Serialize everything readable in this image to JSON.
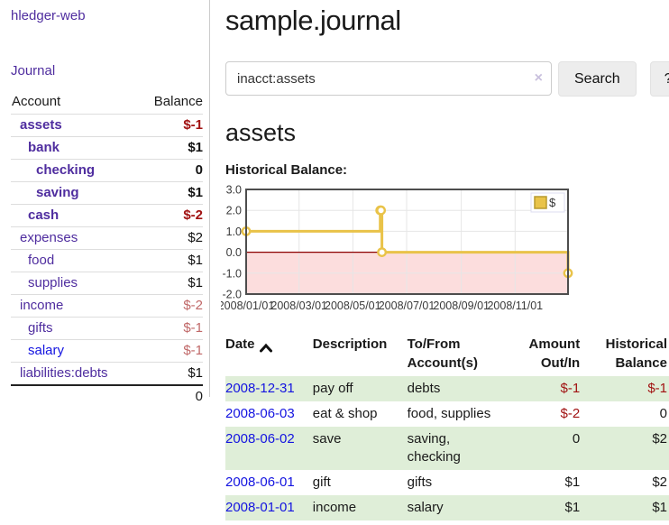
{
  "app": {
    "brand": "hledger-web",
    "nav_journal": "Journal"
  },
  "sidebar": {
    "headers": {
      "account": "Account",
      "balance": "Balance"
    },
    "accounts": [
      {
        "label": "assets",
        "level": 1,
        "bold": true,
        "balance": "$-1",
        "balance_style": "neg",
        "link": "purple"
      },
      {
        "label": "bank",
        "level": 2,
        "bold": true,
        "balance": "$1",
        "balance_style": "pos",
        "link": "purple"
      },
      {
        "label": "checking",
        "level": 3,
        "bold": true,
        "balance": "0",
        "balance_style": "pos",
        "link": "purple"
      },
      {
        "label": "saving",
        "level": 3,
        "bold": true,
        "balance": "$1",
        "balance_style": "pos",
        "link": "purple"
      },
      {
        "label": "cash",
        "level": 2,
        "bold": true,
        "balance": "$-2",
        "balance_style": "neg",
        "link": "purple"
      },
      {
        "label": "expenses",
        "level": 1,
        "bold": false,
        "balance": "$2",
        "balance_style": "pos",
        "link": "purple"
      },
      {
        "label": "food",
        "level": 2,
        "bold": false,
        "balance": "$1",
        "balance_style": "pos",
        "link": "purple"
      },
      {
        "label": "supplies",
        "level": 2,
        "bold": false,
        "balance": "$1",
        "balance_style": "pos",
        "link": "purple"
      },
      {
        "label": "income",
        "level": 1,
        "bold": false,
        "balance": "$-2",
        "balance_style": "neg-dim",
        "link": "purple"
      },
      {
        "label": "gifts",
        "level": 2,
        "bold": false,
        "balance": "$-1",
        "balance_style": "neg-dim",
        "link": "purple"
      },
      {
        "label": "salary",
        "level": 2,
        "bold": false,
        "balance": "$-1",
        "balance_style": "neg-dim",
        "link": "blue"
      },
      {
        "label": "liabilities:debts",
        "level": 1,
        "bold": false,
        "balance": "$1",
        "balance_style": "pos",
        "link": "purple"
      }
    ],
    "total": "0"
  },
  "header": {
    "title": "sample.journal"
  },
  "search": {
    "value": "inacct:assets",
    "clear_icon": "×",
    "button_label": "Search",
    "help_label": "?"
  },
  "account_page": {
    "heading": "assets",
    "chart_label": "Historical Balance:"
  },
  "chart_data": {
    "type": "line",
    "title": "Historical Balance",
    "step": true,
    "series": [
      {
        "name": "$",
        "color": "#e9c349",
        "marker_fill": "#ffffff",
        "points": [
          [
            "2008-01-01",
            1
          ],
          [
            "2008-06-01",
            2
          ],
          [
            "2008-06-02",
            2
          ],
          [
            "2008-06-03",
            0
          ],
          [
            "2008-12-31",
            -1
          ]
        ]
      }
    ],
    "x_range": [
      "2008-01-01",
      "2008-12-31"
    ],
    "x_tick_labels": [
      "2008/01/01",
      "2008/03/01",
      "2008/05/01",
      "2008/07/01",
      "2008/09/01",
      "2008/11/01"
    ],
    "x_tick_dates": [
      "2008-01-01",
      "2008-03-01",
      "2008-05-01",
      "2008-07-01",
      "2008-09-01",
      "2008-11-01"
    ],
    "y_ticks": [
      "3.0",
      "2.0",
      "1.0",
      "0.0",
      "-1.0",
      "-2.0"
    ],
    "ylim": [
      -2,
      3
    ],
    "grid": true,
    "legend_position": "top-right",
    "colors": {
      "negative_region": "#fcdddd",
      "zero_line": "#8b0000",
      "gridline": "#e6e6e6",
      "plot_border": "#4d4d4d",
      "legend_square": "#e9c349",
      "legend_square_border": "#b89a2e"
    }
  },
  "register_table": {
    "headers": {
      "date": "Date",
      "description": "Description",
      "accounts": "To/From Account(s)",
      "amount": "Amount Out/In",
      "balance": "Historical Balance"
    },
    "rows": [
      {
        "date": "2008-12-31",
        "description": "pay off",
        "accounts": "debts",
        "amount": "$-1",
        "amount_neg": true,
        "balance": "$-1",
        "balance_neg": true,
        "striped": true
      },
      {
        "date": "2008-06-03",
        "description": "eat & shop",
        "accounts": "food, supplies",
        "amount": "$-2",
        "amount_neg": true,
        "balance": "0",
        "balance_neg": false,
        "striped": false
      },
      {
        "date": "2008-06-02",
        "description": "save",
        "accounts": "saving, checking",
        "amount": "0",
        "amount_neg": false,
        "balance": "$2",
        "balance_neg": false,
        "striped": true
      },
      {
        "date": "2008-06-01",
        "description": "gift",
        "accounts": "gifts",
        "amount": "$1",
        "amount_neg": false,
        "balance": "$2",
        "balance_neg": false,
        "striped": false
      },
      {
        "date": "2008-01-01",
        "description": "income",
        "accounts": "salary",
        "amount": "$1",
        "amount_neg": false,
        "balance": "$1",
        "balance_neg": false,
        "striped": true
      }
    ]
  }
}
